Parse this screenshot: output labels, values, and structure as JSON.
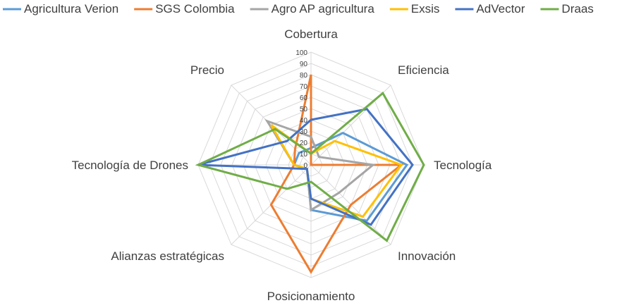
{
  "chart_data": {
    "type": "radar",
    "axes": [
      "Cobertura",
      "Eficiencia",
      "Tecnología",
      "Innovación",
      "Posicionamiento",
      "Alianzas estratégicas",
      "Tecnología de Drones",
      "Precio"
    ],
    "r_range": [
      0,
      100
    ],
    "ticks": [
      0,
      10,
      20,
      30,
      40,
      50,
      60,
      70,
      80,
      90,
      100
    ],
    "grid": true,
    "legend_position": "top",
    "series": [
      {
        "name": "Agricultura Verion",
        "color": "#5b9bd5",
        "values": [
          15,
          40,
          85,
          70,
          40,
          5,
          15,
          15
        ]
      },
      {
        "name": "SGS Colombia",
        "color": "#ed7d31",
        "values": [
          80,
          0,
          80,
          50,
          95,
          50,
          15,
          20
        ]
      },
      {
        "name": "Agro AP agricultura",
        "color": "#a5a5a5",
        "values": [
          25,
          10,
          55,
          35,
          40,
          5,
          15,
          55
        ]
      },
      {
        "name": "Exsis",
        "color": "#ffc000",
        "values": [
          10,
          30,
          80,
          65,
          30,
          5,
          15,
          50
        ]
      },
      {
        "name": "AdVector",
        "color": "#4472c4",
        "values": [
          40,
          70,
          90,
          75,
          30,
          5,
          100,
          30
        ]
      },
      {
        "name": "Draas",
        "color": "#70ad47",
        "values": [
          10,
          90,
          100,
          95,
          15,
          30,
          100,
          45
        ]
      }
    ]
  }
}
